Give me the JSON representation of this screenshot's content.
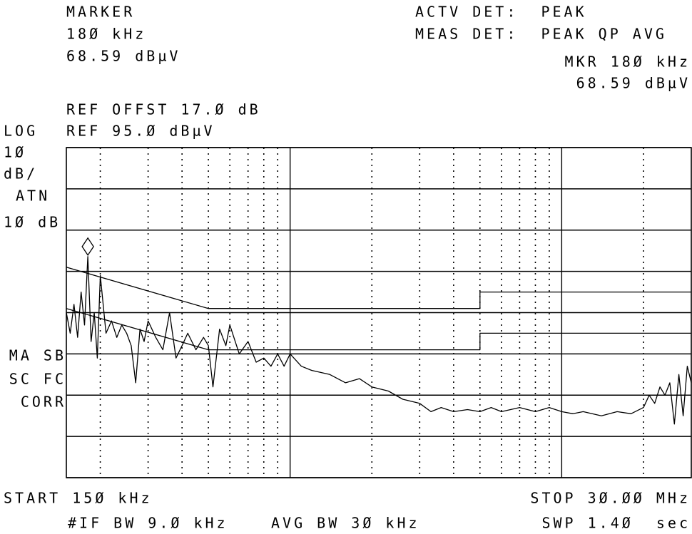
{
  "screen": {
    "marker_label": "MARKER",
    "marker_freq": "18Ø kHz",
    "marker_level": "68.59 dBµV",
    "actv_det": "ACTV DET:  PEAK",
    "meas_det": "MEAS DET:  PEAK QP AVG",
    "mkr_freq": "MKR 18Ø kHz",
    "mkr_level": "68.59 dBµV",
    "ref_offset": "REF OFFST 17.Ø dB",
    "log": "LOG",
    "ref_level": "REF 95.Ø dBµV",
    "scale_value": "1Ø",
    "scale_unit": "dB/",
    "atn": "ATN",
    "atn_value": "1Ø dB",
    "ma_sb": "MA SB",
    "sc_fc": "SC FC",
    "corr": "CORR",
    "start": "START 15Ø kHz",
    "stop": "STOP 3Ø.ØØ MHz",
    "if_bw": "#IF BW 9.Ø kHz",
    "avg_bw": "AVG BW 3Ø kHz",
    "swp": "SWP 1.4Ø  sec"
  },
  "chart_data": {
    "type": "line",
    "log_x": true,
    "grid": true,
    "xlim": [
      0.15,
      30
    ],
    "ylim": [
      15,
      95
    ],
    "xticks": [
      0.2,
      0.3,
      0.4,
      0.5,
      0.6,
      0.7,
      0.8,
      0.9,
      1,
      2,
      3,
      4,
      5,
      6,
      7,
      8,
      9,
      10,
      20
    ],
    "yticks": [
      15,
      25,
      35,
      45,
      55,
      65,
      75,
      85,
      95
    ],
    "marker": {
      "x": 0.18,
      "value": 68.59
    },
    "series": [
      {
        "color": "#000000",
        "x": [
          0.15,
          0.5,
          5,
          5,
          30
        ],
        "values": [
          66,
          56,
          56,
          60,
          60
        ]
      },
      {
        "color": "#000000",
        "x": [
          0.15,
          0.5,
          5,
          5,
          30
        ],
        "values": [
          56,
          46,
          46,
          50,
          50
        ]
      },
      {
        "color": "#000000",
        "x": [
          0.15,
          0.155,
          0.16,
          0.165,
          0.17,
          0.175,
          0.18,
          0.185,
          0.19,
          0.195,
          0.2,
          0.21,
          0.22,
          0.23,
          0.24,
          0.25,
          0.26,
          0.27,
          0.28,
          0.29,
          0.3,
          0.32,
          0.34,
          0.36,
          0.38,
          0.4,
          0.42,
          0.45,
          0.48,
          0.5,
          0.52,
          0.55,
          0.58,
          0.6,
          0.65,
          0.7,
          0.75,
          0.8,
          0.85,
          0.9,
          0.95,
          1.0,
          1.1,
          1.2,
          1.4,
          1.6,
          1.8,
          2.0,
          2.3,
          2.6,
          3.0,
          3.3,
          3.6,
          4.0,
          4.5,
          5.0,
          5.5,
          6,
          7,
          8,
          9,
          10,
          11,
          12,
          14,
          16,
          18,
          20,
          21,
          22,
          23,
          24,
          25,
          26,
          27,
          28,
          29,
          30
        ],
        "values": [
          55,
          50,
          57,
          49,
          60,
          52,
          68.59,
          48,
          55,
          44,
          64,
          50,
          53,
          49,
          52,
          50,
          47,
          38,
          51,
          48,
          53,
          49,
          46,
          55,
          44,
          47,
          50,
          46,
          49,
          47,
          37,
          51,
          47,
          52,
          45,
          48,
          43,
          44,
          42,
          45,
          42,
          45,
          42,
          41,
          40,
          38,
          39,
          37,
          36,
          34,
          33,
          31,
          32,
          31,
          31.5,
          31,
          32,
          31,
          32,
          31,
          32,
          31,
          30.5,
          31,
          30,
          31,
          30.5,
          32,
          35,
          33,
          37,
          35,
          38,
          28,
          40,
          30,
          42,
          38
        ]
      }
    ]
  }
}
